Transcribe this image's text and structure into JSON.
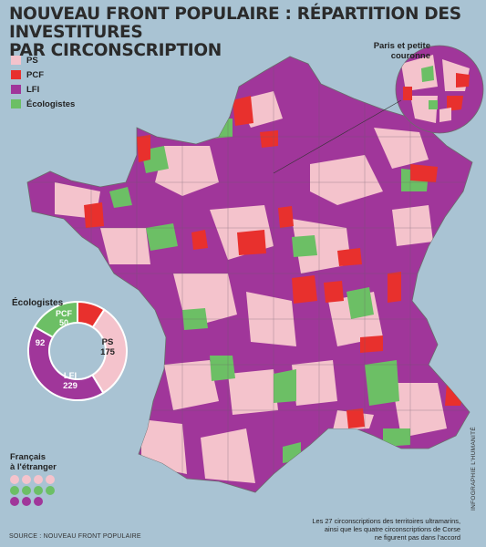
{
  "title_line1": "NOUVEAU FRONT POPULAIRE : RÉPARTITION DES INVESTITURES",
  "title_line2": "PAR CIRCONSCRIPTION",
  "legend": [
    {
      "label": "PS",
      "color": "#f4c3cc"
    },
    {
      "label": "PCF",
      "color": "#e8302d"
    },
    {
      "label": "LFI",
      "color": "#a0369a"
    },
    {
      "label": "Écologistes",
      "color": "#6cbf65"
    }
  ],
  "inset_label": "Paris et petite couronne",
  "donut": {
    "title": "Écologistes",
    "segments": [
      {
        "party": "PCF",
        "value": 50,
        "color": "#e8302d"
      },
      {
        "party": "PS",
        "value": 175,
        "color": "#f4c3cc"
      },
      {
        "party": "LFI",
        "value": 229,
        "color": "#a0369a"
      },
      {
        "party": "Écologistes",
        "value": 92,
        "color": "#6cbf65"
      }
    ],
    "labels": {
      "pcf_name": "PCF",
      "pcf_value": "50",
      "ps_name": "PS",
      "ps_value": "175",
      "lfi_name": "LFI",
      "lfi_value": "229",
      "eco_value": "92"
    }
  },
  "abroad": {
    "label_line1": "Français",
    "label_line2": "à l'étranger",
    "rows": [
      [
        "#f4c3cc",
        "#f4c3cc",
        "#f4c3cc",
        "#f4c3cc"
      ],
      [
        "#6cbf65",
        "#6cbf65",
        "#6cbf65",
        "#6cbf65"
      ],
      [
        "#a0369a",
        "#a0369a",
        "#a0369a"
      ]
    ]
  },
  "source": "SOURCE : NOUVEAU FRONT POPULAIRE",
  "note_line1": "Les 27 circonscriptions des territoires ultramarins,",
  "note_line2": "ainsi que les quatre circonscriptions de Corse",
  "note_line3": "ne figurent pas dans l'accord",
  "credit": "INFOGRAPHIE L'HUMANITÉ"
}
